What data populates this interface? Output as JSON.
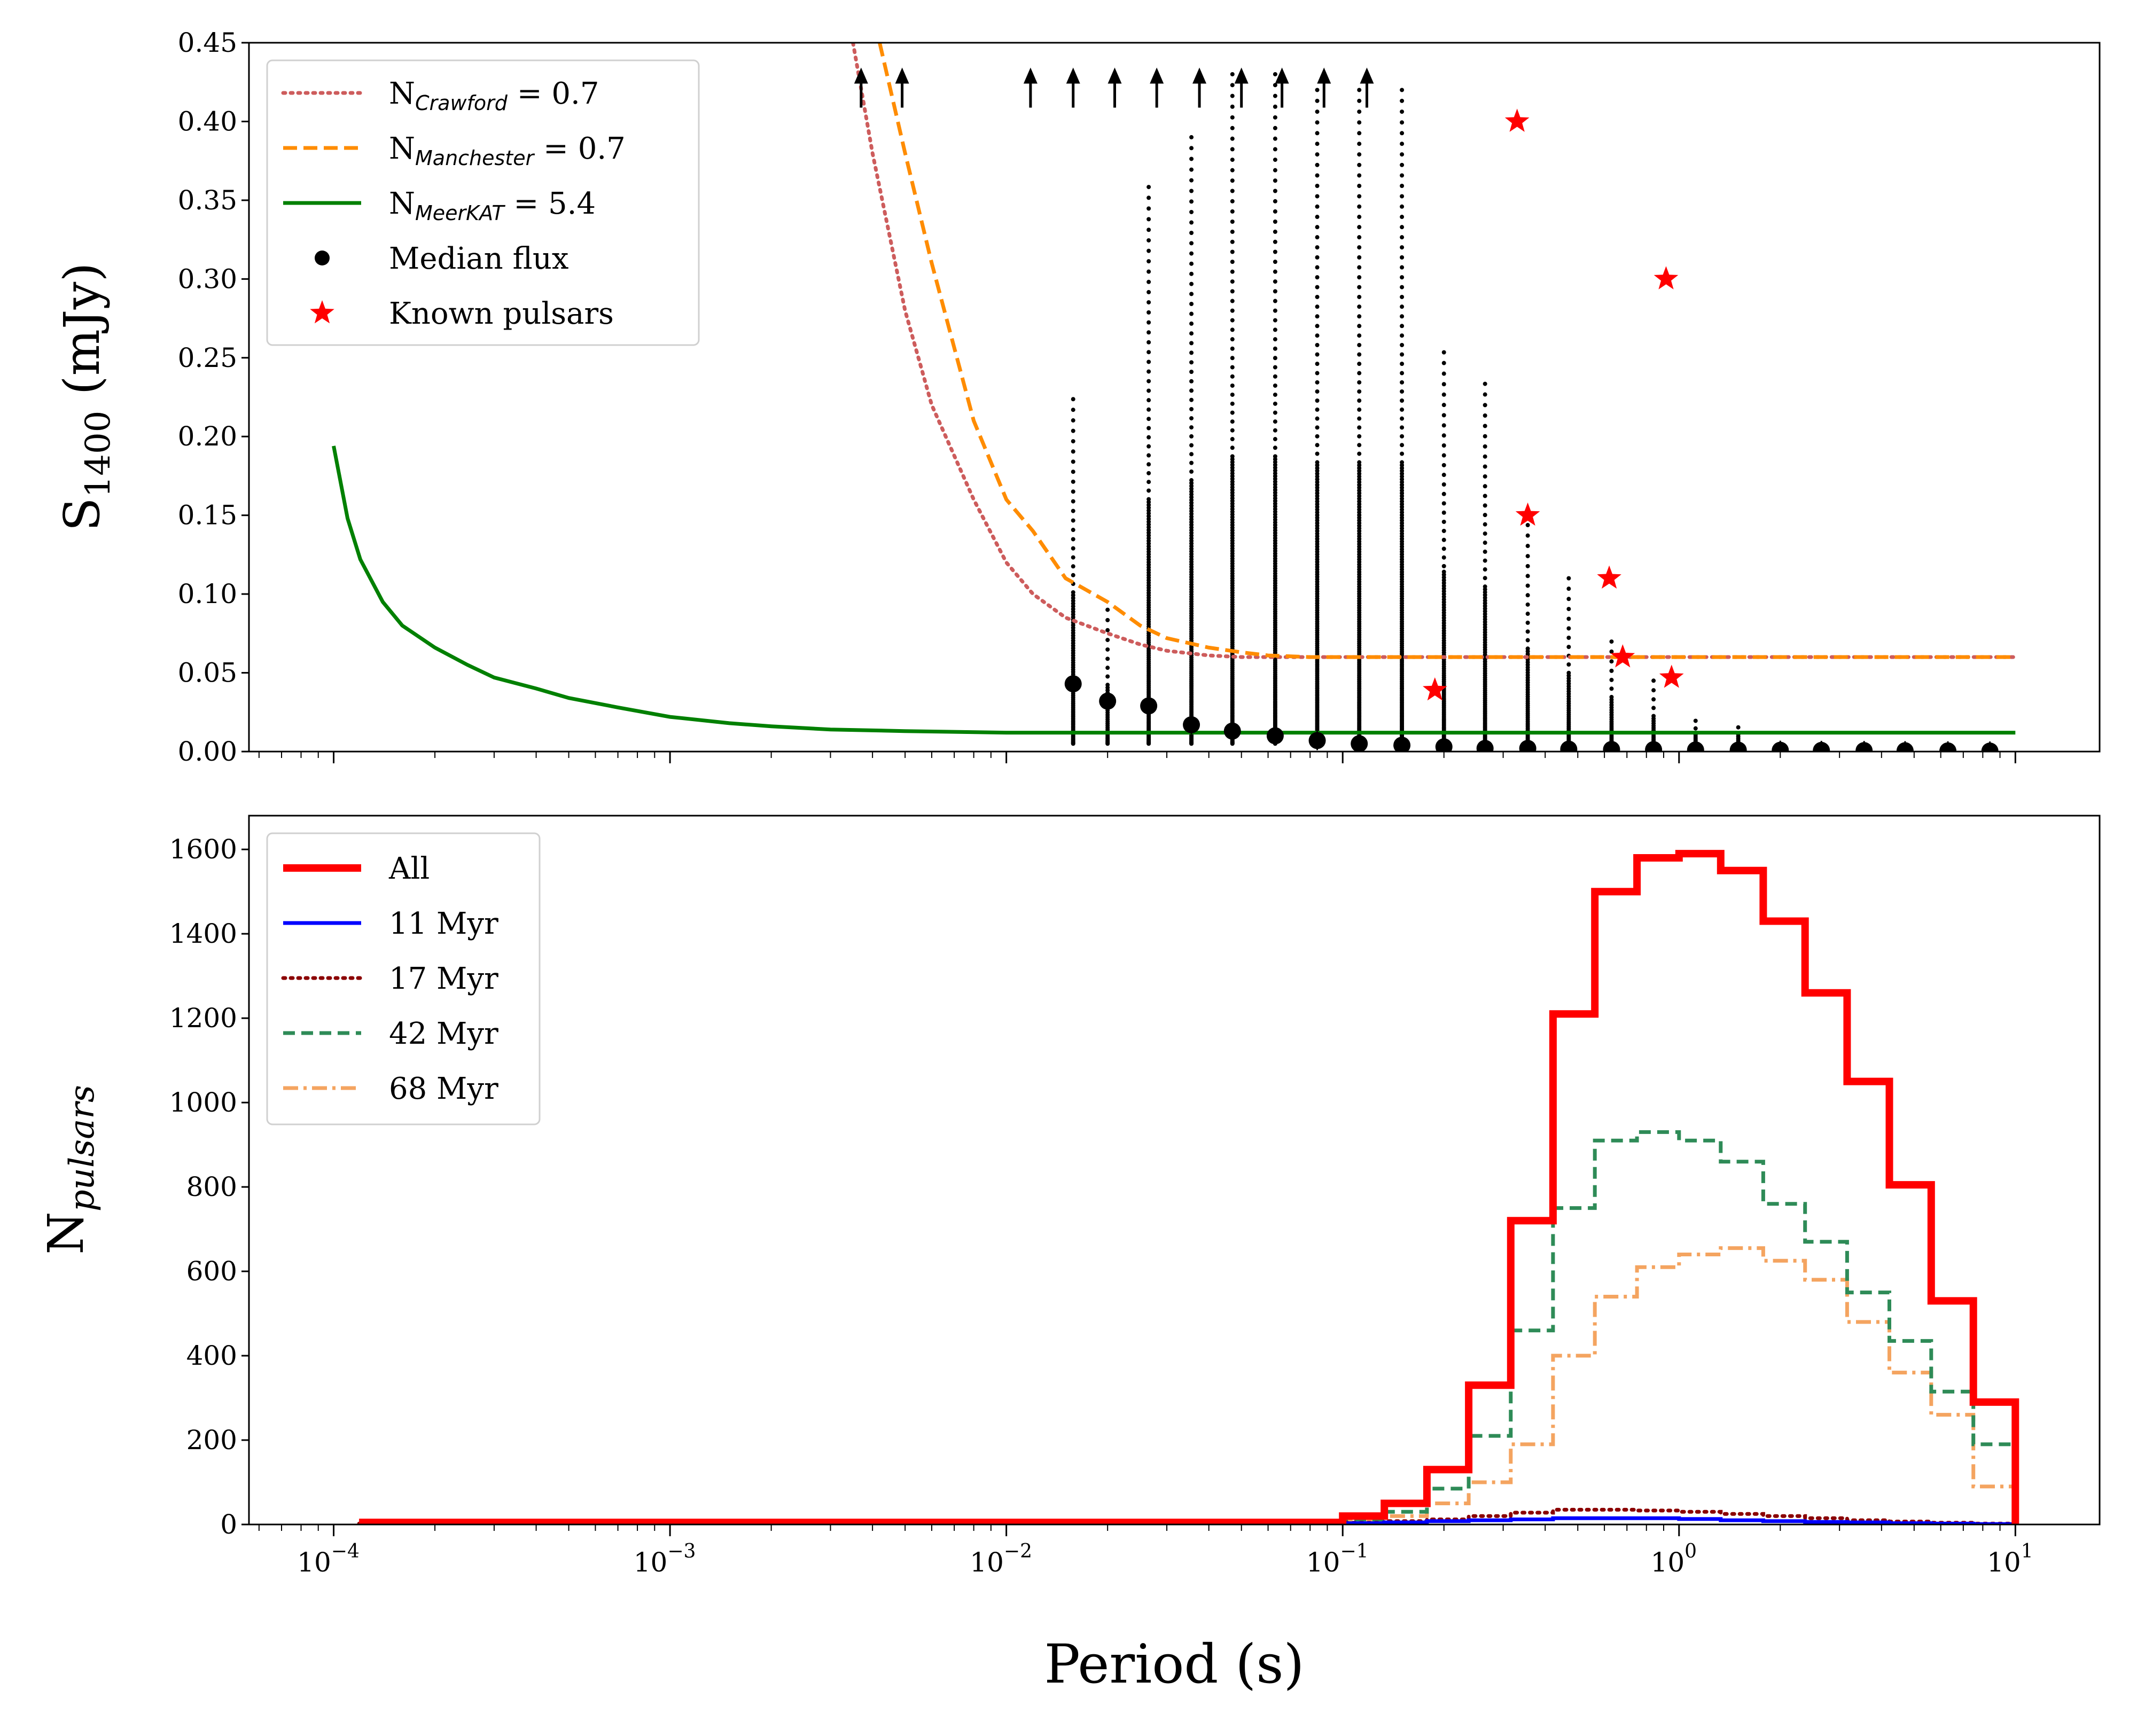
{
  "chart_data": [
    {
      "type": "line",
      "id": "top",
      "xscale": "log",
      "xlim": [
        5.6e-05,
        17.8
      ],
      "ylim": [
        0,
        0.45
      ],
      "ylabel_main": "S",
      "ylabel_sub": "1400",
      "ylabel_unit": " (mJy)",
      "y_ticks": [
        "0.00",
        "0.05",
        "0.10",
        "0.15",
        "0.20",
        "0.25",
        "0.30",
        "0.35",
        "0.40",
        "0.45"
      ],
      "y_tick_values": [
        0,
        0.05,
        0.1,
        0.15,
        0.2,
        0.25,
        0.3,
        0.35,
        0.4,
        0.45
      ],
      "colors": {
        "crawford": "#cd5c5c",
        "manchester": "#ff8c00",
        "meerkat": "#008000",
        "median": "#000000",
        "known": "#ff0000",
        "arrow": "#000000"
      },
      "legend": [
        {
          "key": "crawford",
          "prefix": "N",
          "sub": "Crawford",
          "suffix": " = 0.7",
          "style": "dotted"
        },
        {
          "key": "manchester",
          "prefix": "N",
          "sub": "Manchester",
          "suffix": " = 0.7",
          "style": "dashed"
        },
        {
          "key": "meerkat",
          "prefix": "N",
          "sub": "MeerKAT",
          "suffix": " = 5.4",
          "style": "solid"
        },
        {
          "key": "median",
          "prefix": "Median flux",
          "sub": "",
          "suffix": "",
          "style": "dot"
        },
        {
          "key": "known",
          "prefix": "Known pulsars",
          "sub": "",
          "suffix": "",
          "style": "star"
        }
      ],
      "series": [
        {
          "name": "N_Crawford = 0.7",
          "x": [
            0.0035,
            0.004,
            0.005,
            0.006,
            0.008,
            0.01,
            0.012,
            0.015,
            0.02,
            0.025,
            0.03,
            0.04,
            0.05,
            0.06,
            0.08,
            0.1,
            10
          ],
          "y": [
            0.45,
            0.38,
            0.28,
            0.22,
            0.16,
            0.12,
            0.1,
            0.085,
            0.075,
            0.068,
            0.064,
            0.061,
            0.06,
            0.06,
            0.06,
            0.06,
            0.06
          ]
        },
        {
          "name": "N_Manchester = 0.7",
          "x": [
            0.0042,
            0.005,
            0.006,
            0.008,
            0.01,
            0.012,
            0.015,
            0.02,
            0.025,
            0.03,
            0.04,
            0.05,
            0.06,
            0.08,
            0.1,
            10
          ],
          "y": [
            0.45,
            0.38,
            0.31,
            0.21,
            0.16,
            0.14,
            0.11,
            0.095,
            0.08,
            0.072,
            0.066,
            0.063,
            0.061,
            0.06,
            0.06,
            0.06
          ]
        },
        {
          "name": "N_MeerKAT = 5.4",
          "x": [
            0.0001,
            0.00011,
            0.00012,
            0.00014,
            0.00016,
            0.0002,
            0.00025,
            0.0003,
            0.0004,
            0.0005,
            0.0007,
            0.001,
            0.0015,
            0.002,
            0.003,
            0.005,
            0.01,
            0.02,
            0.05,
            0.1,
            1,
            10
          ],
          "y": [
            0.194,
            0.148,
            0.122,
            0.095,
            0.08,
            0.066,
            0.055,
            0.047,
            0.04,
            0.034,
            0.028,
            0.022,
            0.018,
            0.016,
            0.014,
            0.013,
            0.012,
            0.012,
            0.012,
            0.012,
            0.012,
            0.012
          ]
        },
        {
          "name": "Median flux",
          "x": [
            0.0158,
            0.02,
            0.0265,
            0.0355,
            0.047,
            0.063,
            0.084,
            0.112,
            0.15,
            0.2,
            0.265,
            0.355,
            0.47,
            0.63,
            0.84,
            1.12,
            1.5,
            2.0,
            2.65,
            3.55,
            4.7,
            6.3,
            8.4
          ],
          "y": [
            0.043,
            0.032,
            0.029,
            0.017,
            0.013,
            0.01,
            0.007,
            0.005,
            0.004,
            0.003,
            0.002,
            0.002,
            0.0015,
            0.0013,
            0.0012,
            0.001,
            0.0009,
            0.0008,
            0.0007,
            0.0006,
            0.0005,
            0.0004,
            0.0003
          ]
        },
        {
          "name": "Known pulsars",
          "x": [
            0.188,
            0.33,
            0.355,
            0.62,
            0.68,
            0.915,
            0.95
          ],
          "y": [
            0.039,
            0.4,
            0.15,
            0.11,
            0.06,
            0.3,
            0.047
          ]
        },
        {
          "name": "upper-limit arrows",
          "x": [
            0.0037,
            0.0049,
            0.0118,
            0.0158,
            0.021,
            0.028,
            0.0375,
            0.05,
            0.066,
            0.088,
            0.118
          ],
          "y": [
            0.42,
            0.42,
            0.42,
            0.42,
            0.42,
            0.42,
            0.42,
            0.42,
            0.42,
            0.42,
            0.42
          ]
        },
        {
          "name": "scatter columns",
          "x": [
            0.0158,
            0.02,
            0.0265,
            0.0355,
            0.047,
            0.063,
            0.084,
            0.112,
            0.15,
            0.2,
            0.265,
            0.355,
            0.47,
            0.63,
            0.84,
            1.12,
            1.5
          ],
          "y": [
            0.226,
            0.09,
            0.363,
            0.39,
            0.43,
            0.43,
            0.42,
            0.42,
            0.42,
            0.258,
            0.238,
            0.146,
            0.11,
            0.072,
            0.045,
            0.023,
            0.017
          ]
        }
      ]
    },
    {
      "type": "line",
      "id": "bottom",
      "xscale": "log",
      "xlim": [
        5.6e-05,
        17.8
      ],
      "ylim": [
        0,
        1680
      ],
      "xlabel": "Period (s)",
      "ylabel_main": "N",
      "ylabel_sub": "pulsars",
      "y_ticks": [
        "0",
        "200",
        "400",
        "600",
        "800",
        "1000",
        "1200",
        "1400",
        "1600"
      ],
      "y_tick_values": [
        0,
        200,
        400,
        600,
        800,
        1000,
        1200,
        1400,
        1600
      ],
      "x_tick_base": "10",
      "x_ticks": [
        "−4",
        "−3",
        "−2",
        "−1",
        "0",
        "1"
      ],
      "x_tick_values": [
        0.0001,
        0.001,
        0.01,
        0.1,
        1,
        10
      ],
      "colors": {
        "all": "#ff0000",
        "myr11": "#0000ff",
        "myr17": "#8b0000",
        "myr42": "#2e8b57",
        "myr68": "#f4a460"
      },
      "legend": [
        {
          "key": "all",
          "label": "All",
          "style": "thick"
        },
        {
          "key": "myr11",
          "label": "11 Myr",
          "style": "solid"
        },
        {
          "key": "myr17",
          "label": "17 Myr",
          "style": "dotted"
        },
        {
          "key": "myr42",
          "label": "42 Myr",
          "style": "dashed"
        },
        {
          "key": "myr68",
          "label": "68 Myr",
          "style": "dashdot"
        }
      ],
      "bin_edges": [
        0.000119,
        0.1,
        0.133,
        0.178,
        0.237,
        0.316,
        0.422,
        0.562,
        0.75,
        1.0,
        1.33,
        1.78,
        2.37,
        3.16,
        4.22,
        5.62,
        7.5,
        10.0
      ],
      "series": [
        {
          "name": "All",
          "values": [
            5,
            20,
            50,
            130,
            330,
            720,
            1210,
            1500,
            1580,
            1590,
            1550,
            1430,
            1260,
            1050,
            805,
            530,
            290
          ]
        },
        {
          "name": "11 Myr",
          "values": [
            1,
            3,
            5,
            8,
            10,
            12,
            15,
            15,
            15,
            13,
            10,
            8,
            6,
            5,
            3,
            2,
            1
          ]
        },
        {
          "name": "17 Myr",
          "values": [
            2,
            4,
            8,
            12,
            20,
            28,
            35,
            35,
            33,
            30,
            25,
            20,
            15,
            10,
            7,
            4,
            2
          ]
        },
        {
          "name": "42 Myr",
          "values": [
            3,
            12,
            30,
            85,
            210,
            460,
            750,
            910,
            930,
            910,
            860,
            760,
            670,
            550,
            435,
            315,
            190
          ]
        },
        {
          "name": "68 Myr",
          "values": [
            2,
            8,
            20,
            50,
            100,
            190,
            400,
            540,
            610,
            640,
            655,
            625,
            580,
            480,
            360,
            260,
            90
          ]
        }
      ]
    }
  ]
}
